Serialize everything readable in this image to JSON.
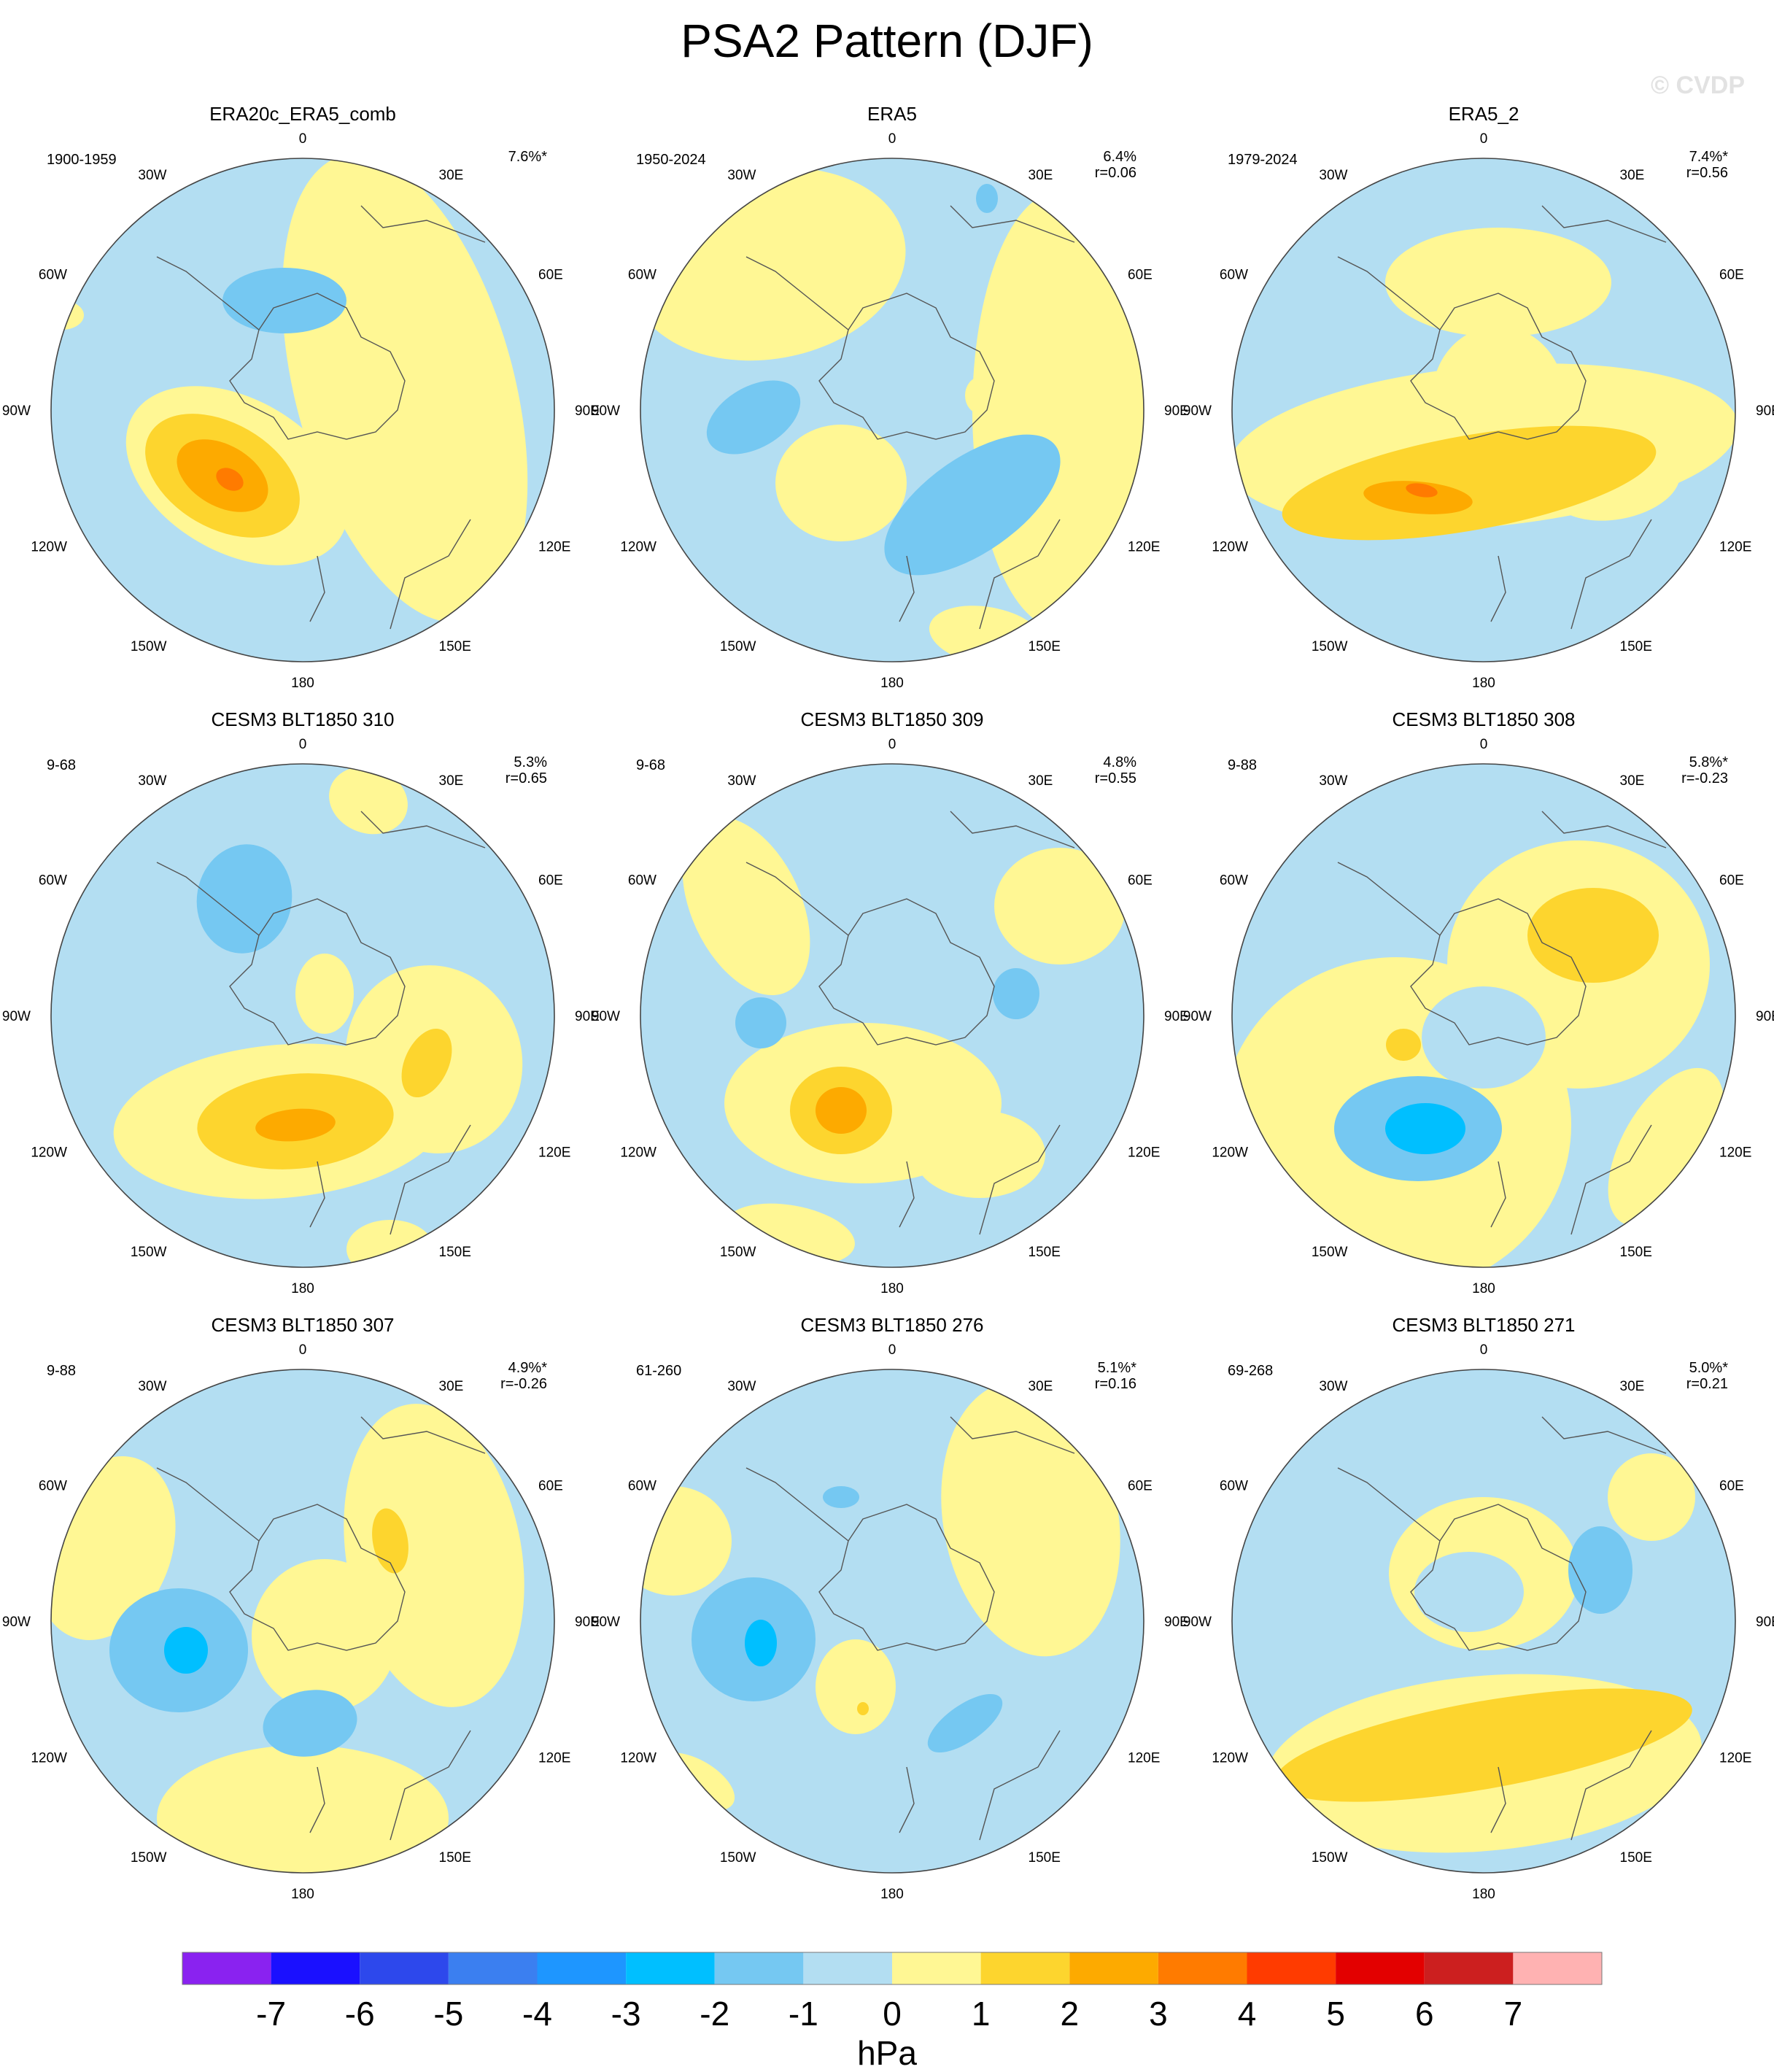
{
  "figure": {
    "title": "PSA2 Pattern (DJF)",
    "watermark": "© CVDP"
  },
  "lon_labels": [
    "0",
    "30E",
    "60E",
    "90E",
    "120E",
    "150E",
    "180",
    "150W",
    "120W",
    "90W",
    "60W",
    "30W"
  ],
  "chart_data": {
    "type": "heatmap",
    "projection": "south polar stereographic",
    "field": "PSA2 sea level pressure pattern",
    "colorbar": {
      "ticks": [
        "-7",
        "-6",
        "-5",
        "-4",
        "-3",
        "-2",
        "-1",
        "0",
        "1",
        "2",
        "3",
        "4",
        "5",
        "6",
        "7"
      ],
      "colors": [
        "#8a22f0",
        "#1a10ff",
        "#2d48ec",
        "#3b7ff0",
        "#1e96ff",
        "#00bfff",
        "#75c8f2",
        "#b3def2",
        "#fff794",
        "#fdd52e",
        "#fdaa00",
        "#ff7b00",
        "#ff3b00",
        "#e30000",
        "#cc1f1f",
        "#ffb2b2"
      ],
      "unit": "hPa"
    },
    "panels": [
      {
        "title": "ERA20c_ERA5_comb",
        "years": "1900-1959",
        "pct": "7.6%*",
        "r": ""
      },
      {
        "title": "ERA5",
        "years": "1950-2024",
        "pct": "6.4%",
        "r": "r=0.06"
      },
      {
        "title": "ERA5_2",
        "years": "1979-2024",
        "pct": "7.4%*",
        "r": "r=0.56"
      },
      {
        "title": "CESM3 BLT1850 310",
        "years": "9-68",
        "pct": "5.3%",
        "r": "r=0.65"
      },
      {
        "title": "CESM3 BLT1850 309",
        "years": "9-68",
        "pct": "4.8%",
        "r": "r=0.55"
      },
      {
        "title": "CESM3 BLT1850 308",
        "years": "9-88",
        "pct": "5.8%*",
        "r": "r=-0.23"
      },
      {
        "title": "CESM3 BLT1850 307",
        "years": "9-88",
        "pct": "4.9%*",
        "r": "r=-0.26"
      },
      {
        "title": "CESM3 BLT1850 276",
        "years": "61-260",
        "pct": "5.1%*",
        "r": "r=0.16"
      },
      {
        "title": "CESM3 BLT1850 271",
        "years": "69-268",
        "pct": "5.0%*",
        "r": "r=0.21"
      }
    ]
  }
}
